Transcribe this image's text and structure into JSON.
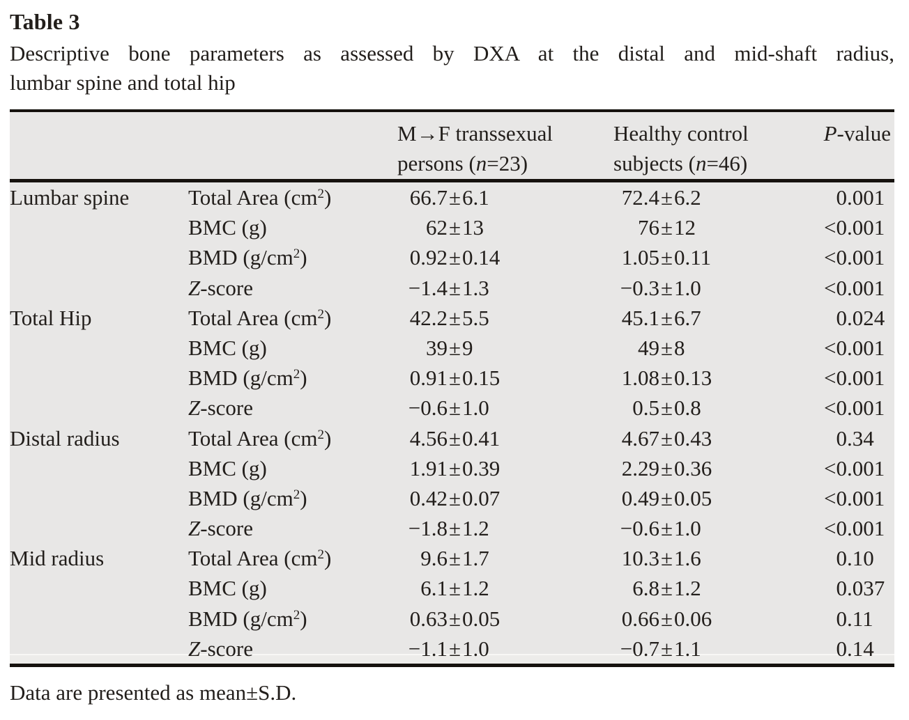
{
  "page": {
    "title": "Table 3",
    "caption_line1": "Descriptive bone parameters as assessed by DXA at the distal and mid-shaft radius,",
    "caption_line2": "lumbar spine and total hip",
    "footnote": "Data are presented as mean±S.D."
  },
  "colors": {
    "table_background": "#e8e7e6",
    "rule": "#16120e",
    "text": "#221e1b"
  },
  "table": {
    "header": {
      "col3_line1": "M→F transsexual",
      "col3_line2": [
        {
          "t": "persons ("
        },
        {
          "t": "n",
          "i": true
        },
        {
          "t": "=23)"
        }
      ],
      "col4_line1": "Healthy control",
      "col4_line2": [
        {
          "t": "subjects ("
        },
        {
          "t": "n",
          "i": true
        },
        {
          "t": "=46)"
        }
      ],
      "col5": [
        {
          "t": "P",
          "i": true
        },
        {
          "t": "-value"
        }
      ]
    },
    "sections": [
      {
        "label": "Lumbar spine",
        "rows": [
          {
            "param": [
              {
                "t": "Total Area (cm"
              },
              {
                "t": "2",
                "sup": true
              },
              {
                "t": ")"
              }
            ],
            "mtf": "66.7±6.1",
            "control": "72.4±6.2",
            "p": "0.001"
          },
          {
            "param": [
              {
                "t": "BMC (g)"
              }
            ],
            "mtf": "62±13",
            "control": "76±12",
            "p": "<0.001"
          },
          {
            "param": [
              {
                "t": "BMD (g/cm"
              },
              {
                "t": "2",
                "sup": true
              },
              {
                "t": ")"
              }
            ],
            "mtf": "0.92±0.14",
            "control": "1.05±0.11",
            "p": "<0.001"
          },
          {
            "param": [
              {
                "t": "Z",
                "i": true
              },
              {
                "t": "-score"
              }
            ],
            "mtf": "−1.4±1.3",
            "control": "−0.3±1.0",
            "p": "<0.001"
          }
        ]
      },
      {
        "label": "Total Hip",
        "rows": [
          {
            "param": [
              {
                "t": "Total Area (cm"
              },
              {
                "t": "2",
                "sup": true
              },
              {
                "t": ")"
              }
            ],
            "mtf": "42.2±5.5",
            "control": "45.1±6.7",
            "p": "0.024"
          },
          {
            "param": [
              {
                "t": "BMC (g)"
              }
            ],
            "mtf": "39±9",
            "control": "49±8",
            "p": "<0.001"
          },
          {
            "param": [
              {
                "t": "BMD (g/cm"
              },
              {
                "t": "2",
                "sup": true
              },
              {
                "t": ")"
              }
            ],
            "mtf": "0.91±0.15",
            "control": "1.08±0.13",
            "p": "<0.001"
          },
          {
            "param": [
              {
                "t": "Z",
                "i": true
              },
              {
                "t": "-score"
              }
            ],
            "mtf": "−0.6±1.0",
            "control": "0.5±0.8",
            "p": "<0.001"
          }
        ]
      },
      {
        "label": "Distal radius",
        "rows": [
          {
            "param": [
              {
                "t": "Total Area (cm"
              },
              {
                "t": "2",
                "sup": true
              },
              {
                "t": ")"
              }
            ],
            "mtf": "4.56±0.41",
            "control": "4.67±0.43",
            "p": "0.34"
          },
          {
            "param": [
              {
                "t": "BMC (g)"
              }
            ],
            "mtf": "1.91±0.39",
            "control": "2.29±0.36",
            "p": "<0.001"
          },
          {
            "param": [
              {
                "t": "BMD (g/cm"
              },
              {
                "t": "2",
                "sup": true
              },
              {
                "t": ")"
              }
            ],
            "mtf": "0.42±0.07",
            "control": "0.49±0.05",
            "p": "<0.001"
          },
          {
            "param": [
              {
                "t": "Z",
                "i": true
              },
              {
                "t": "-score"
              }
            ],
            "mtf": "−1.8±1.2",
            "control": "−0.6±1.0",
            "p": "<0.001"
          }
        ]
      },
      {
        "label": "Mid radius",
        "rows": [
          {
            "param": [
              {
                "t": "Total Area (cm"
              },
              {
                "t": "2",
                "sup": true
              },
              {
                "t": ")"
              }
            ],
            "mtf": "9.6±1.7",
            "control": "10.3±1.6",
            "p": "0.10"
          },
          {
            "param": [
              {
                "t": "BMC (g)"
              }
            ],
            "mtf": "6.1±1.2",
            "control": "6.8±1.2",
            "p": "0.037"
          },
          {
            "param": [
              {
                "t": "BMD (g/cm"
              },
              {
                "t": "2",
                "sup": true
              },
              {
                "t": ")"
              }
            ],
            "mtf": "0.63±0.05",
            "control": "0.66±0.06",
            "p": "0.11"
          },
          {
            "param": [
              {
                "t": "Z",
                "i": true
              },
              {
                "t": "-score"
              }
            ],
            "mtf": "−1.1±1.0",
            "control": "−0.7±1.1",
            "p": "0.14"
          }
        ]
      }
    ]
  }
}
